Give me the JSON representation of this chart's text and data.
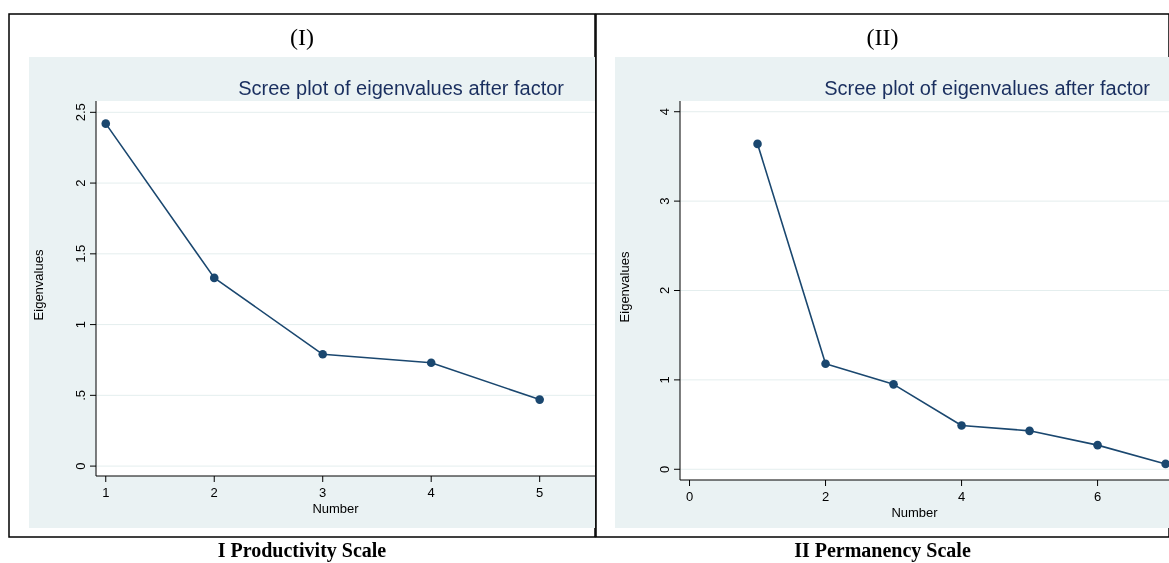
{
  "chart_data": [
    {
      "type": "line",
      "title": "(I)",
      "subtitle": "Scree plot of eigenvalues after factor",
      "xlabel": "Number",
      "ylabel": "Eigenvalues",
      "annotations": [
        "I Productivity Scale"
      ],
      "x": [
        1,
        2,
        3,
        4,
        5
      ],
      "series": [
        {
          "color": "#1a476f",
          "values": [
            2.42,
            1.33,
            0.79,
            0.73,
            0.47
          ]
        }
      ],
      "xlim": [
        0.91,
        5.51
      ],
      "xticks": [
        1,
        2,
        3,
        4,
        5
      ],
      "ylim": [
        -0.07,
        2.58
      ],
      "yticks": [
        {
          "value": 0,
          "label": "0"
        },
        {
          "value": 0.5,
          "label": ".5"
        },
        {
          "value": 1,
          "label": "1"
        },
        {
          "value": 1.5,
          "label": "1.5"
        },
        {
          "value": 2,
          "label": "2"
        },
        {
          "value": 2.5,
          "label": "2.5"
        }
      ],
      "grid": "y",
      "marker": "circle",
      "line_style": "solid"
    },
    {
      "type": "line",
      "title": "(II)",
      "subtitle": "Scree plot of eigenvalues after factor",
      "xlabel": "Number",
      "ylabel": "Eigenvalues",
      "annotations": [
        "II Permanency Scale"
      ],
      "x": [
        1,
        2,
        3,
        4,
        5,
        6,
        7
      ],
      "series": [
        {
          "color": "#1a476f",
          "values": [
            3.64,
            1.18,
            0.95,
            0.49,
            0.43,
            0.27,
            0.06
          ]
        }
      ],
      "xlim": [
        -0.14,
        7.05
      ],
      "xticks": [
        0,
        2,
        4,
        6
      ],
      "ylim": [
        -0.12,
        4.12
      ],
      "yticks": [
        0,
        1,
        2,
        3,
        4
      ],
      "grid": "y",
      "marker": "circle",
      "line_style": "solid"
    }
  ]
}
